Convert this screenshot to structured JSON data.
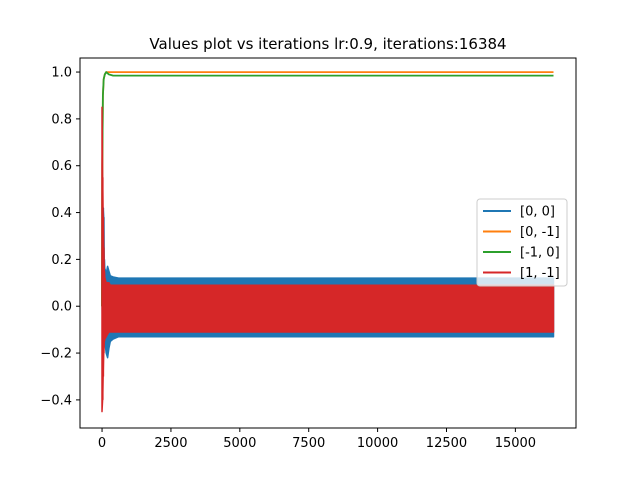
{
  "chart_data": {
    "type": "line",
    "title": "Values plot vs iterations lr:0.9, iterations:16384",
    "xlabel": "",
    "ylabel": "",
    "xlim": [
      -800,
      17200
    ],
    "ylim": [
      -0.52,
      1.06
    ],
    "x_ticks": [
      0,
      2500,
      5000,
      7500,
      10000,
      12500,
      15000
    ],
    "x_tick_labels": [
      "0",
      "2500",
      "5000",
      "7500",
      "10000",
      "12500",
      "15000"
    ],
    "y_ticks": [
      -0.4,
      -0.2,
      0.0,
      0.2,
      0.4,
      0.6,
      0.8,
      1.0
    ],
    "y_tick_labels": [
      "−0.4",
      "−0.2",
      "0.0",
      "0.2",
      "0.4",
      "0.6",
      "0.8",
      "1.0"
    ],
    "grid": false,
    "legend_position": "center-right",
    "series": [
      {
        "name": "[0, 0]",
        "color": "#1f77b4",
        "style": "oscillating band",
        "x": [
          0,
          20,
          40,
          60,
          80,
          100,
          150,
          200,
          250,
          300,
          400,
          600,
          1000,
          16384
        ],
        "y_upper": [
          0.05,
          0.3,
          0.42,
          0.38,
          0.2,
          0.16,
          0.14,
          0.17,
          0.15,
          0.13,
          0.125,
          0.12,
          0.12,
          0.12
        ],
        "y_lower": [
          0.05,
          -0.15,
          -0.2,
          -0.18,
          -0.16,
          -0.15,
          -0.2,
          -0.22,
          -0.18,
          -0.15,
          -0.14,
          -0.13,
          -0.13,
          -0.13
        ]
      },
      {
        "name": "[0, -1]",
        "color": "#ff7f0e",
        "x": [
          0,
          10,
          30,
          60,
          100,
          150,
          250,
          16384
        ],
        "y": [
          0.0,
          0.6,
          0.9,
          0.97,
          0.99,
          1.0,
          1.0,
          1.0
        ]
      },
      {
        "name": "[-1, 0]",
        "color": "#2ca02c",
        "x": [
          0,
          10,
          30,
          60,
          100,
          150,
          250,
          400,
          16384
        ],
        "y": [
          0.0,
          0.6,
          0.9,
          0.97,
          0.99,
          1.0,
          0.99,
          0.985,
          0.985
        ]
      },
      {
        "name": "[1, -1]",
        "color": "#d62728",
        "style": "oscillating band",
        "x": [
          0,
          20,
          40,
          60,
          80,
          100,
          150,
          200,
          250,
          300,
          400,
          600,
          1000,
          16384
        ],
        "y_upper": [
          0.85,
          0.55,
          0.38,
          0.25,
          0.15,
          0.12,
          0.1,
          0.1,
          0.1,
          0.09,
          0.09,
          0.09,
          0.09,
          0.09
        ],
        "y_lower": [
          -0.45,
          -0.4,
          -0.3,
          -0.2,
          -0.15,
          -0.14,
          -0.13,
          -0.12,
          -0.11,
          -0.11,
          -0.11,
          -0.11,
          -0.11,
          -0.11
        ]
      }
    ]
  }
}
